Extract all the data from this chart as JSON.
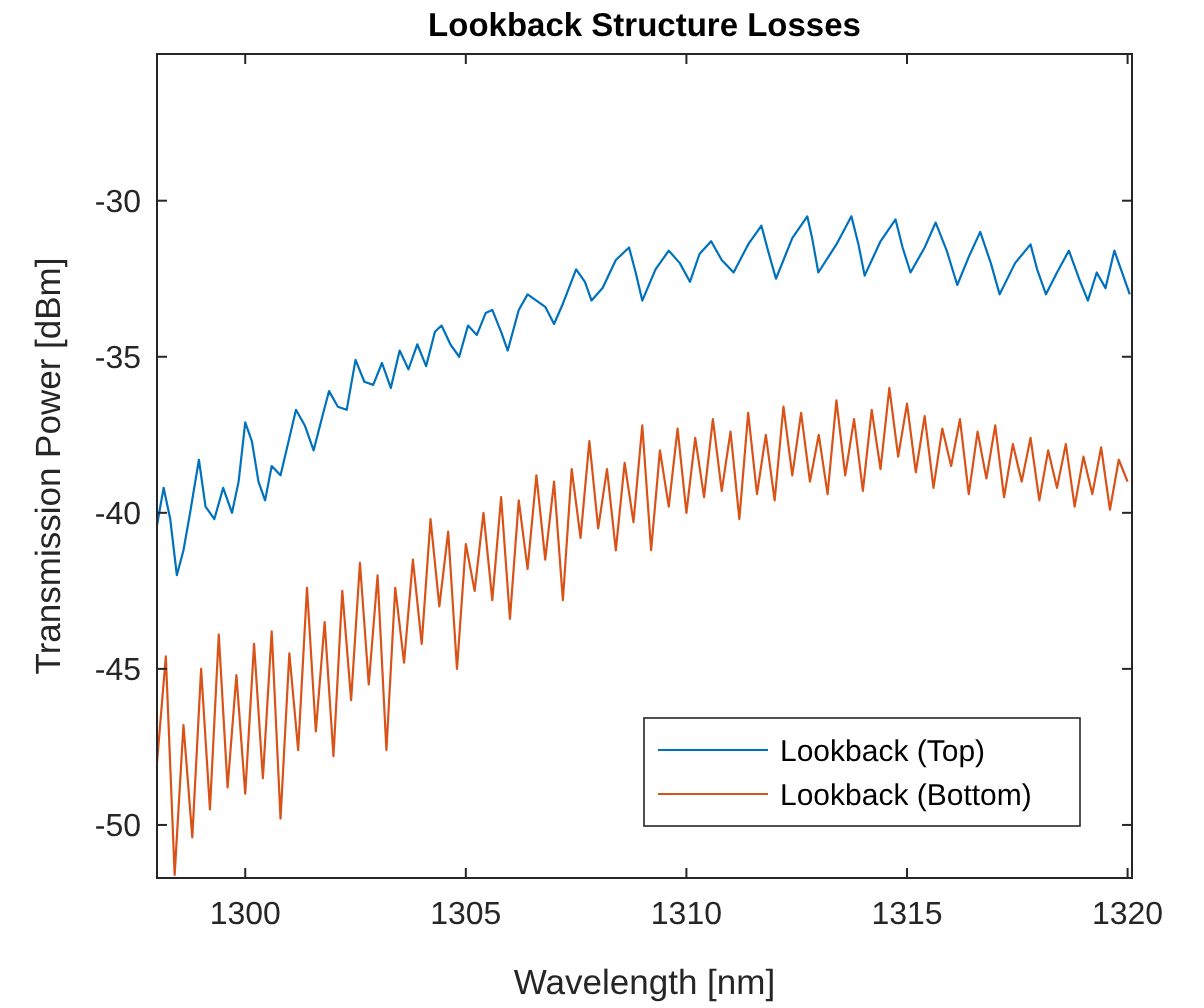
{
  "chart_data": {
    "type": "line",
    "title": "Lookback Structure Losses",
    "xlabel": "Wavelength [nm]",
    "ylabel": "Transmission Power [dBm]",
    "xlim": [
      1298,
      1320.1
    ],
    "ylim": [
      -51.7,
      -25.3
    ],
    "xticks": [
      1300,
      1305,
      1310,
      1315,
      1320
    ],
    "yticks": [
      -50,
      -45,
      -40,
      -35,
      -30
    ],
    "grid": false,
    "legend": "bottom right",
    "line_style": "solid",
    "marker": "none",
    "series": [
      {
        "name": "Lookback (Top)",
        "color": "#0072bd",
        "x": [
          1298.0,
          1298.15,
          1298.3,
          1298.45,
          1298.6,
          1298.75,
          1298.95,
          1299.1,
          1299.3,
          1299.5,
          1299.7,
          1299.85,
          1300.0,
          1300.15,
          1300.3,
          1300.45,
          1300.6,
          1300.8,
          1301.0,
          1301.15,
          1301.35,
          1301.55,
          1301.75,
          1301.9,
          1302.1,
          1302.3,
          1302.5,
          1302.7,
          1302.9,
          1303.1,
          1303.3,
          1303.5,
          1303.7,
          1303.9,
          1304.1,
          1304.3,
          1304.45,
          1304.65,
          1304.85,
          1305.05,
          1305.25,
          1305.45,
          1305.6,
          1305.8,
          1305.95,
          1306.2,
          1306.4,
          1306.6,
          1306.8,
          1307.0,
          1307.2,
          1307.5,
          1307.7,
          1307.85,
          1308.1,
          1308.4,
          1308.7,
          1308.85,
          1309.0,
          1309.3,
          1309.6,
          1309.85,
          1310.08,
          1310.3,
          1310.56,
          1310.8,
          1311.07,
          1311.4,
          1311.7,
          1311.85,
          1312.03,
          1312.4,
          1312.74,
          1312.85,
          1312.99,
          1313.4,
          1313.74,
          1313.9,
          1314.04,
          1314.4,
          1314.74,
          1314.9,
          1315.08,
          1315.4,
          1315.65,
          1315.9,
          1316.14,
          1316.4,
          1316.66,
          1316.9,
          1317.1,
          1317.45,
          1317.8,
          1317.95,
          1318.15,
          1318.4,
          1318.67,
          1318.9,
          1319.1,
          1319.3,
          1319.5,
          1319.7,
          1319.85,
          1320.05
        ],
        "values": [
          -40.4,
          -39.2,
          -40.2,
          -42.0,
          -41.2,
          -40.0,
          -38.3,
          -39.8,
          -40.2,
          -39.2,
          -40.0,
          -39.0,
          -37.1,
          -37.7,
          -39.0,
          -39.6,
          -38.5,
          -38.8,
          -37.6,
          -36.7,
          -37.2,
          -38.0,
          -36.9,
          -36.1,
          -36.6,
          -36.7,
          -35.1,
          -35.8,
          -35.9,
          -35.2,
          -36.0,
          -34.8,
          -35.4,
          -34.6,
          -35.3,
          -34.2,
          -34.0,
          -34.6,
          -35.0,
          -34.0,
          -34.3,
          -33.6,
          -33.5,
          -34.2,
          -34.8,
          -33.5,
          -33.0,
          -33.2,
          -33.4,
          -33.95,
          -33.3,
          -32.2,
          -32.6,
          -33.2,
          -32.8,
          -31.9,
          -31.5,
          -32.3,
          -33.2,
          -32.2,
          -31.6,
          -32.0,
          -32.6,
          -31.7,
          -31.3,
          -31.9,
          -32.3,
          -31.4,
          -30.8,
          -31.6,
          -32.5,
          -31.2,
          -30.5,
          -31.2,
          -32.3,
          -31.4,
          -30.5,
          -31.4,
          -32.4,
          -31.3,
          -30.6,
          -31.5,
          -32.3,
          -31.5,
          -30.7,
          -31.6,
          -32.7,
          -31.8,
          -31.0,
          -32.0,
          -33.0,
          -32.0,
          -31.4,
          -32.2,
          -33.0,
          -32.3,
          -31.6,
          -32.5,
          -33.2,
          -32.3,
          -32.8,
          -31.6,
          -32.2,
          -33.0
        ]
      },
      {
        "name": "Lookback (Bottom)",
        "color": "#d95319",
        "x": [
          1298.0,
          1298.2,
          1298.4,
          1298.6,
          1298.8,
          1299.0,
          1299.2,
          1299.4,
          1299.6,
          1299.8,
          1300.0,
          1300.2,
          1300.4,
          1300.6,
          1300.8,
          1301.0,
          1301.2,
          1301.4,
          1301.6,
          1301.8,
          1302.0,
          1302.2,
          1302.4,
          1302.6,
          1302.8,
          1303.0,
          1303.2,
          1303.4,
          1303.6,
          1303.8,
          1304.0,
          1304.2,
          1304.4,
          1304.6,
          1304.8,
          1305.0,
          1305.2,
          1305.4,
          1305.6,
          1305.8,
          1306.0,
          1306.2,
          1306.4,
          1306.6,
          1306.8,
          1307.0,
          1307.2,
          1307.4,
          1307.6,
          1307.8,
          1308.0,
          1308.2,
          1308.4,
          1308.6,
          1308.8,
          1309.0,
          1309.2,
          1309.4,
          1309.6,
          1309.8,
          1310.0,
          1310.2,
          1310.4,
          1310.6,
          1310.8,
          1311.0,
          1311.2,
          1311.4,
          1311.6,
          1311.8,
          1312.0,
          1312.2,
          1312.4,
          1312.6,
          1312.8,
          1313.0,
          1313.2,
          1313.4,
          1313.6,
          1313.8,
          1314.0,
          1314.2,
          1314.4,
          1314.6,
          1314.8,
          1315.0,
          1315.2,
          1315.4,
          1315.6,
          1315.8,
          1316.0,
          1316.2,
          1316.4,
          1316.6,
          1316.8,
          1317.0,
          1317.2,
          1317.4,
          1317.6,
          1317.8,
          1318.0,
          1318.2,
          1318.4,
          1318.6,
          1318.8,
          1319.0,
          1319.2,
          1319.4,
          1319.6,
          1319.8,
          1320.0
        ],
        "values": [
          -48.0,
          -44.6,
          -51.6,
          -46.8,
          -50.4,
          -45.0,
          -49.5,
          -43.9,
          -48.8,
          -45.2,
          -49.0,
          -44.2,
          -48.5,
          -43.8,
          -49.8,
          -44.5,
          -47.6,
          -42.4,
          -47.0,
          -43.5,
          -47.8,
          -42.5,
          -46.0,
          -41.6,
          -45.5,
          -42.0,
          -47.6,
          -42.4,
          -44.8,
          -41.5,
          -44.2,
          -40.2,
          -43.0,
          -40.6,
          -45.0,
          -41.0,
          -42.5,
          -40.0,
          -42.8,
          -39.5,
          -43.4,
          -39.6,
          -41.8,
          -38.8,
          -41.5,
          -39.0,
          -42.8,
          -38.6,
          -40.8,
          -37.7,
          -40.5,
          -38.6,
          -41.2,
          -38.4,
          -40.3,
          -37.2,
          -41.2,
          -38.0,
          -39.8,
          -37.3,
          -40.0,
          -37.6,
          -39.5,
          -37.0,
          -39.3,
          -37.4,
          -40.2,
          -36.8,
          -39.4,
          -37.5,
          -39.6,
          -36.6,
          -38.8,
          -36.8,
          -39.0,
          -37.5,
          -39.4,
          -36.4,
          -38.8,
          -37.0,
          -39.3,
          -36.7,
          -38.6,
          -36.0,
          -38.2,
          -36.5,
          -38.7,
          -36.9,
          -39.2,
          -37.3,
          -38.5,
          -37.0,
          -39.4,
          -37.4,
          -38.9,
          -37.2,
          -39.5,
          -37.8,
          -39.0,
          -37.6,
          -39.6,
          -38.0,
          -39.2,
          -37.8,
          -39.8,
          -38.2,
          -39.4,
          -37.9,
          -39.9,
          -38.3,
          -39.0
        ]
      }
    ]
  }
}
